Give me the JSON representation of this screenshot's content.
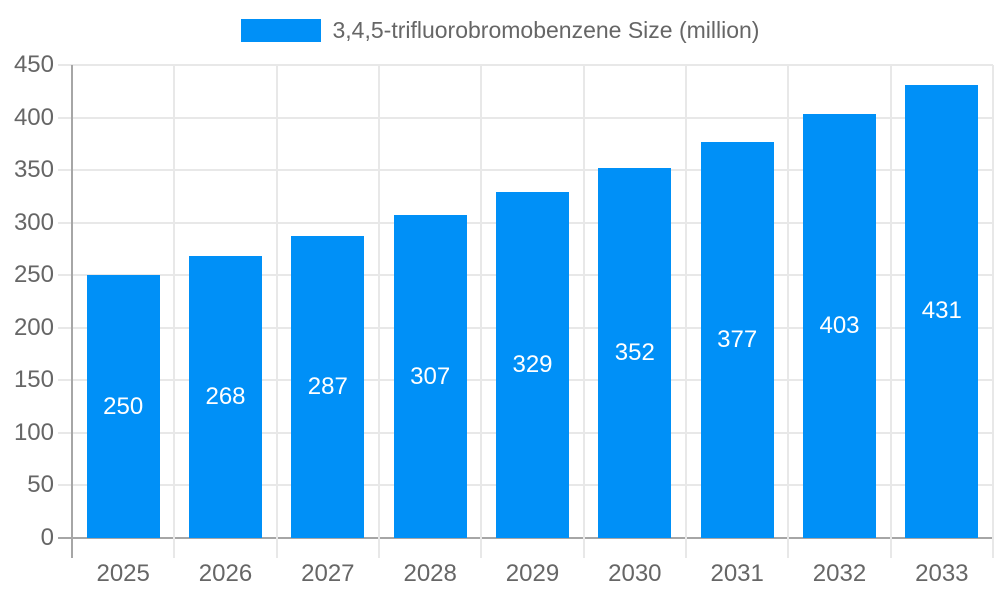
{
  "legend": {
    "label": "3,4,5-trifluorobromobenzene Size (million)"
  },
  "colors": {
    "bar": "#0090f7",
    "grid": "#e8e8e8",
    "axis": "#a6a6a6",
    "tick_text": "#666666",
    "bar_label_text": "#ffffff"
  },
  "chart_data": {
    "type": "bar",
    "title": "3,4,5-trifluorobromobenzene Size (million)",
    "categories": [
      "2025",
      "2026",
      "2027",
      "2028",
      "2029",
      "2030",
      "2031",
      "2032",
      "2033"
    ],
    "values": [
      250,
      268,
      287,
      307,
      329,
      352,
      377,
      403,
      431
    ],
    "xlabel": "",
    "ylabel": "",
    "ylim": [
      0,
      450
    ],
    "ytick_step": 50,
    "grid": "both",
    "legend_position": "top",
    "value_labels": "inside-center",
    "bar_color": "#0090f7"
  }
}
